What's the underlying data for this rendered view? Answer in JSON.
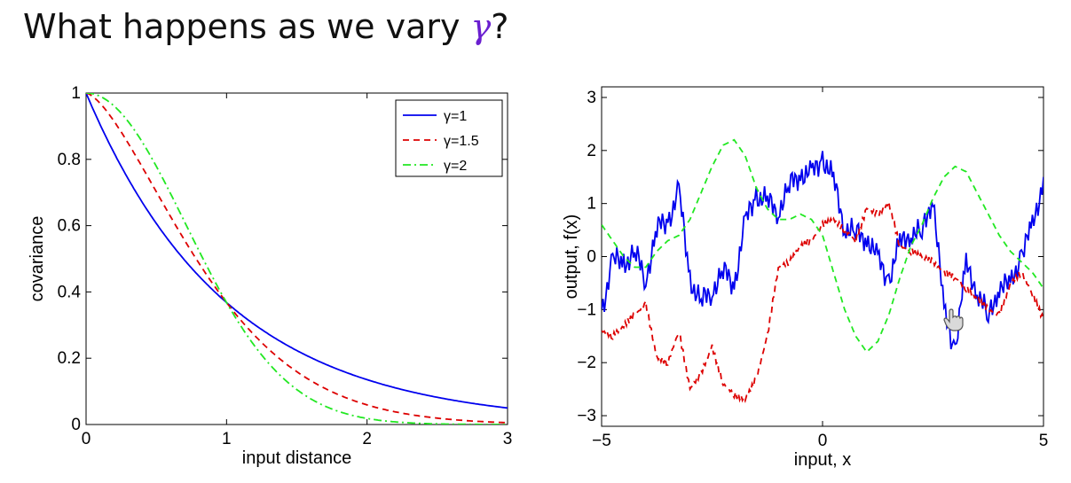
{
  "title": {
    "prefix": "What happens as we vary ",
    "symbol": "γ",
    "suffix": "?"
  },
  "colors": {
    "blue": "#0000ee",
    "red": "#dd0000",
    "green": "#22e822",
    "axis": "#000000"
  },
  "chart_data": [
    {
      "type": "line",
      "xlabel": "input distance",
      "ylabel": "covariance",
      "xlim": [
        0,
        3
      ],
      "ylim": [
        0,
        1
      ],
      "xticks": [
        0,
        1,
        2,
        3
      ],
      "yticks": [
        0,
        0.2,
        0.4,
        0.6,
        0.8,
        1
      ],
      "grid": false,
      "legend_position": "top-right",
      "function": "exp(-x^gamma)",
      "series": [
        {
          "name": "γ=1",
          "gamma": 1,
          "color": "#0000ee",
          "style": "solid",
          "x": [
            0,
            0.25,
            0.5,
            0.75,
            1,
            1.5,
            2,
            2.5,
            3
          ],
          "y": [
            1,
            0.78,
            0.61,
            0.47,
            0.37,
            0.22,
            0.14,
            0.08,
            0.05
          ]
        },
        {
          "name": "γ=1.5",
          "gamma": 1.5,
          "color": "#dd0000",
          "style": "dashed",
          "x": [
            0,
            0.25,
            0.5,
            0.75,
            1,
            1.5,
            2,
            2.5,
            3
          ],
          "y": [
            1,
            0.88,
            0.7,
            0.52,
            0.37,
            0.16,
            0.06,
            0.02,
            0.01
          ]
        },
        {
          "name": "γ=2",
          "gamma": 2,
          "color": "#22e822",
          "style": "dashdot",
          "x": [
            0,
            0.25,
            0.5,
            0.75,
            1,
            1.5,
            2,
            2.5,
            3
          ],
          "y": [
            1,
            0.94,
            0.78,
            0.57,
            0.37,
            0.11,
            0.02,
            0.0,
            0.0
          ]
        }
      ]
    },
    {
      "type": "line",
      "xlabel": "input, x",
      "ylabel": "output, f(x)",
      "xlim": [
        -5,
        5
      ],
      "ylim": [
        -3.2,
        3.2
      ],
      "xticks": [
        -5,
        0,
        5
      ],
      "yticks": [
        -3,
        -2,
        -1,
        0,
        1,
        2,
        3
      ],
      "grid": false,
      "series": [
        {
          "color": "#0000ee",
          "style": "solid",
          "x": [
            -5,
            -4.75,
            -4.5,
            -4.25,
            -4,
            -3.75,
            -3.5,
            -3.25,
            -3,
            -2.75,
            -2.5,
            -2.25,
            -2,
            -1.75,
            -1.5,
            -1.25,
            -1,
            -0.75,
            -0.5,
            -0.25,
            0,
            0.25,
            0.5,
            0.75,
            1,
            1.25,
            1.5,
            1.75,
            2,
            2.25,
            2.5,
            2.75,
            3,
            3.25,
            3.5,
            3.75,
            4,
            4.25,
            4.5,
            4.75,
            5
          ],
          "y": [
            -1.0,
            -0.1,
            -0.1,
            0.05,
            -0.4,
            0.5,
            0.7,
            1.2,
            -0.4,
            -0.9,
            -0.6,
            -0.3,
            -0.5,
            0.6,
            1.2,
            1.0,
            0.9,
            1.3,
            1.6,
            1.5,
            1.9,
            1.4,
            0.6,
            0.4,
            0.4,
            -0.1,
            -0.4,
            0.2,
            0.5,
            0.4,
            1.2,
            -1.1,
            -1.7,
            -0.2,
            -0.6,
            -1.2,
            -0.5,
            -0.6,
            0.1,
            0.5,
            1.5
          ]
        },
        {
          "color": "#dd0000",
          "style": "dashed",
          "x": [
            -5,
            -4.75,
            -4.5,
            -4.25,
            -4,
            -3.75,
            -3.5,
            -3.25,
            -3,
            -2.75,
            -2.5,
            -2.25,
            -2,
            -1.75,
            -1.5,
            -1.25,
            -1,
            -0.75,
            -0.5,
            -0.25,
            0,
            0.25,
            0.5,
            0.75,
            1,
            1.25,
            1.5,
            1.75,
            2,
            2.25,
            2.5,
            2.75,
            3,
            3.25,
            3.5,
            3.75,
            4,
            4.25,
            4.5,
            4.75,
            5
          ],
          "y": [
            -1.4,
            -1.5,
            -1.3,
            -1.1,
            -0.9,
            -1.9,
            -2.0,
            -1.4,
            -2.5,
            -2.2,
            -1.7,
            -2.4,
            -2.6,
            -2.7,
            -2.3,
            -1.5,
            -0.2,
            -0.1,
            0.2,
            0.3,
            0.6,
            0.7,
            0.5,
            0.3,
            0.9,
            0.8,
            1.0,
            0.2,
            0.1,
            0.0,
            -0.1,
            -0.3,
            -0.4,
            -0.6,
            -0.8,
            -1.0,
            -1.1,
            -0.5,
            -0.3,
            -0.7,
            -1.2
          ]
        },
        {
          "color": "#22e822",
          "style": "dashed",
          "x": [
            -5,
            -4.75,
            -4.5,
            -4.25,
            -4,
            -3.75,
            -3.5,
            -3.25,
            -3,
            -2.75,
            -2.5,
            -2.25,
            -2,
            -1.75,
            -1.5,
            -1.25,
            -1,
            -0.75,
            -0.5,
            -0.25,
            0,
            0.25,
            0.5,
            0.75,
            1,
            1.25,
            1.5,
            1.75,
            2,
            2.25,
            2.5,
            2.75,
            3,
            3.25,
            3.5,
            3.75,
            4,
            4.25,
            4.5,
            4.75,
            5
          ],
          "y": [
            0.6,
            0.3,
            0.0,
            -0.2,
            -0.2,
            0.1,
            0.3,
            0.4,
            0.7,
            1.2,
            1.7,
            2.1,
            2.2,
            1.9,
            1.3,
            0.9,
            0.7,
            0.7,
            0.8,
            0.7,
            0.4,
            -0.3,
            -1.0,
            -1.5,
            -1.8,
            -1.6,
            -1.1,
            -0.4,
            0.2,
            0.6,
            1.1,
            1.5,
            1.7,
            1.6,
            1.2,
            0.8,
            0.4,
            0.1,
            -0.1,
            -0.3,
            -0.6
          ]
        }
      ]
    }
  ]
}
